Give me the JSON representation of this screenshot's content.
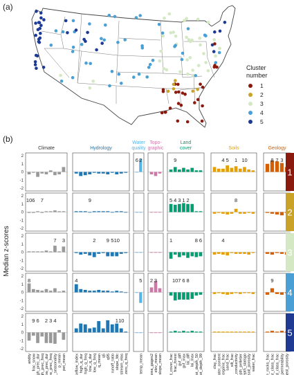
{
  "panel_a_label": "(a)",
  "panel_b_label": "(b)",
  "map_legend": {
    "title": [
      "Cluster",
      "number"
    ],
    "items": [
      {
        "label": "1",
        "color": "#8b1a0e"
      },
      {
        "label": "2",
        "color": "#c9a227"
      },
      {
        "label": "3",
        "color": "#d4e8c4"
      },
      {
        "label": "4",
        "color": "#4a9fd4"
      },
      {
        "label": "5",
        "color": "#1f3a93"
      }
    ]
  },
  "chart_data": {
    "type": "bar",
    "ylabel": "Median z-scores",
    "ylim": [
      -2,
      2
    ],
    "yticks": [
      "2",
      "1",
      "0",
      "-1",
      "-2"
    ],
    "groups": [
      {
        "name": "Climate",
        "color": "#333333",
        "bar_color": "#999999",
        "vars": [
          "aridity",
          "frac_snow",
          "high_prec_dur",
          "high_prec_freq",
          "low_prec_dur",
          "low_prec_freq",
          "p_seasonality",
          "p_mean",
          "pet_mean"
        ]
      },
      {
        "name": "Hydrology",
        "color": "#1f77b4",
        "bar_color": "#1f77b4",
        "vars": [
          "baseflow_index",
          "high_q_dur",
          "high_q_freq",
          "low_q_dur",
          "low_q_freq",
          "q_mean",
          "q5",
          "q95",
          "runoff_ratio",
          "slope_fdc",
          "stream_elas",
          "zero_q_freq"
        ]
      },
      {
        "name": "Water quality",
        "color": "#56b4e9",
        "bar_color": "#56b4e9",
        "vars": [
          "",
          "temp_mean"
        ]
      },
      {
        "name": "Topo-graphic",
        "color": "#cc79a7",
        "bar_color": "#cc79a7",
        "vars": [
          "area_gages2",
          "elev_mean",
          "slope_mean"
        ]
      },
      {
        "name": "Land cover",
        "color": "#009e73",
        "bar_color": "#009e73",
        "vars": [
          "dom_land_cover_frac",
          "frac_forest",
          "gvf_diff",
          "gvf_max",
          "lai_diff",
          "lai_max",
          "root_depth_50",
          "root_depth_99"
        ]
      },
      {
        "name": "Soils",
        "color": "#e69f00",
        "bar_color": "#e69f00",
        "vars": [
          "clay_frac",
          "max_water_content",
          "organic_frac",
          "sand_frac",
          "silt_frac",
          "soil_conductivity",
          "soil_depth_pelletier",
          "soil_depth_statsgo",
          "soil_porosity",
          "water_frac"
        ]
      },
      {
        "name": "Geology",
        "color": "#d55e00",
        "bar_color": "#d55e00",
        "vars": [
          "carbonate_rocks_frac",
          "geol_1st_class_frac",
          "geol_2nd_class_frac",
          "geol_permeability",
          "geol_porosity"
        ]
      }
    ],
    "clusters": [
      {
        "name": "1",
        "color": "#8b1a0e",
        "annotations": [
          [
            "",
            "",
            "",
            "",
            "",
            "",
            "",
            "",
            ""
          ],
          [
            "",
            "",
            "",
            "",
            "",
            "",
            "",
            "",
            "",
            "",
            "",
            ""
          ],
          [
            "6",
            "2"
          ],
          [
            "",
            "",
            ""
          ],
          [
            "",
            "9",
            "",
            "",
            "",
            "",
            "",
            ""
          ],
          [
            "",
            "",
            "4",
            "5",
            "",
            "1",
            "",
            "10",
            "",
            ""
          ],
          [
            "",
            "8",
            "7",
            "3",
            ""
          ]
        ],
        "values": [
          [
            -0.3,
            -0.1,
            -0.6,
            -0.2,
            -0.3,
            0.2,
            -0.4,
            -0.3,
            0.6
          ],
          [
            -0.2,
            -0.5,
            -0.4,
            -0.3,
            -0.1,
            -0.2,
            -0.2,
            -0.3,
            -0.1,
            -0.3,
            -0.2,
            -0.1
          ],
          [
            0,
            1.6
          ],
          [
            -0.3,
            -0.5,
            -0.2
          ],
          [
            0.3,
            0.6,
            0.3,
            0.5,
            0.3,
            0.5,
            0.2,
            0.2
          ],
          [
            0.6,
            0.4,
            0.4,
            0.8,
            0.5,
            0.7,
            0.4,
            0.6,
            0.3,
            0.2
          ],
          [
            1.0,
            1.4,
            1.3,
            1.1,
            0.6
          ]
        ]
      },
      {
        "name": "2",
        "color": "#c9a227",
        "annotations": [
          [
            "10",
            "6",
            "",
            "7",
            "",
            "",
            "",
            "",
            ""
          ],
          [
            "",
            "",
            "",
            "9",
            "",
            "",
            "",
            "",
            "",
            "",
            "",
            ""
          ],
          [
            "",
            ""
          ],
          [
            "",
            "",
            ""
          ],
          [
            "5",
            "4",
            "3",
            "1",
            "2",
            "",
            "",
            ""
          ],
          [
            "",
            "",
            "",
            "",
            "",
            "8",
            "",
            "",
            "",
            ""
          ],
          [
            "",
            "",
            "",
            "",
            ""
          ]
        ],
        "values": [
          [
            -0.1,
            -0.1,
            0.1,
            -0.1,
            0.1,
            0.1,
            0.2,
            0.1,
            0.1
          ],
          [
            0.1,
            0.1,
            0.1,
            0.0,
            0.1,
            0.1,
            0.1,
            0.1,
            0.0,
            0.1,
            0.1,
            0.0
          ],
          [
            0,
            0
          ],
          [
            0,
            0,
            0
          ],
          [
            1.0,
            0.9,
            1.0,
            1.1,
            1.0,
            1.0,
            0.1,
            0.1
          ],
          [
            -0.2,
            -0.1,
            -0.2,
            -0.3,
            -0.2,
            0.4,
            -0.2,
            -0.2,
            -0.1,
            -0.2
          ],
          [
            -0.1,
            -0.2,
            -0.3,
            -0.4,
            -0.1
          ]
        ]
      },
      {
        "name": "3",
        "color": "#d4e8c4",
        "annotations": [
          [
            "",
            "",
            "",
            "",
            "",
            "",
            "7",
            "",
            "3"
          ],
          [
            "",
            "",
            "",
            "",
            "2",
            "",
            "",
            "9",
            "5",
            "10",
            "",
            ""
          ],
          [
            "",
            ""
          ],
          [
            "",
            "",
            ""
          ],
          [
            "1",
            "",
            "",
            "",
            "",
            "",
            "8",
            "6"
          ],
          [
            "",
            "",
            "4",
            "",
            "",
            "",
            "",
            "",
            "",
            ""
          ],
          [
            "",
            "",
            "",
            "",
            ""
          ]
        ],
        "values": [
          [
            0.1,
            0.1,
            0.1,
            0.1,
            0.2,
            0.1,
            0.8,
            0.1,
            0.7
          ],
          [
            -0.1,
            -0.3,
            -0.2,
            -0.4,
            -0.6,
            -0.2,
            -0.1,
            -0.5,
            -0.5,
            -0.5,
            -0.2,
            -0.1
          ],
          [
            0,
            0
          ],
          [
            0,
            0,
            0
          ],
          [
            -0.8,
            -0.3,
            -0.6,
            -0.4,
            -0.7,
            -0.5,
            -0.6,
            -0.5
          ],
          [
            -0.3,
            -0.2,
            -0.3,
            -0.4,
            -0.1,
            -0.2,
            -0.2,
            -0.2,
            -0.3,
            -0.1
          ],
          [
            -0.2,
            -0.3,
            -0.1,
            -0.2,
            -0.3
          ]
        ]
      },
      {
        "name": "4",
        "color": "#4a9fd4",
        "annotations": [
          [
            "8",
            "",
            "",
            "",
            "",
            "",
            "",
            "",
            ""
          ],
          [
            "4",
            "",
            "",
            "",
            "",
            "",
            "",
            "",
            "",
            "",
            "",
            ""
          ],
          [
            "",
            "5"
          ],
          [
            "2",
            "3",
            ""
          ],
          [
            "",
            "10",
            "7",
            "6",
            "8",
            "",
            "",
            ""
          ],
          [
            "",
            "",
            "",
            "",
            "",
            "",
            "",
            "",
            "",
            ""
          ],
          [
            "",
            "9",
            "",
            "",
            ""
          ]
        ],
        "values": [
          [
            1.1,
            0.4,
            0.3,
            0.2,
            0.4,
            0.2,
            0.5,
            0.1,
            0.2
          ],
          [
            1.0,
            0.4,
            0.3,
            0.2,
            0.2,
            0.3,
            0.2,
            0.2,
            0.1,
            0.2,
            0.1,
            0.0
          ],
          [
            0,
            -1.3
          ],
          [
            0.6,
            1.4,
            0.5
          ],
          [
            -0.4,
            -1.0,
            -0.9,
            -0.9,
            -0.9,
            -0.8,
            -0.4,
            -0.3
          ],
          [
            -0.2,
            -0.1,
            -0.2,
            -0.3,
            -0.2,
            -0.1,
            -0.2,
            -0.1,
            -0.1,
            -0.2
          ],
          [
            -0.3,
            0.5,
            -0.2,
            -0.3,
            -0.1
          ]
        ]
      },
      {
        "name": "5",
        "color": "#1f3a93",
        "annotations": [
          [
            "",
            "9",
            "6",
            "",
            "2",
            "3",
            "4",
            "",
            ""
          ],
          [
            "",
            "",
            "",
            "",
            "",
            "",
            "",
            "",
            "",
            "1",
            "10",
            ""
          ],
          [
            "",
            ""
          ],
          [
            "",
            "",
            ""
          ],
          [
            "",
            "",
            "",
            "",
            "",
            "",
            "",
            ""
          ],
          [
            "",
            "",
            "",
            "",
            "",
            "",
            "",
            "",
            "",
            ""
          ],
          [
            "",
            "",
            "",
            "",
            ""
          ]
        ],
        "values": [
          [
            -1.0,
            -0.4,
            -1.3,
            -0.5,
            -1.3,
            -1.3,
            -1.4,
            0.3,
            -0.9
          ],
          [
            0.5,
            1.1,
            1.0,
            0.5,
            0.6,
            1.4,
            0.5,
            1.5,
            1.0,
            1.1,
            0.5,
            0.1
          ],
          [
            0,
            0
          ],
          [
            0,
            0,
            0
          ],
          [
            0.1,
            0.2,
            0.1,
            0.2,
            0.1,
            0.2,
            0.1,
            0.1
          ],
          [
            0.1,
            0.1,
            0.1,
            0.1,
            0.1,
            0.1,
            0.1,
            0.1,
            0.1,
            0.1
          ],
          [
            0.1,
            0.2,
            0.1,
            0.2,
            0.1
          ]
        ]
      }
    ]
  }
}
